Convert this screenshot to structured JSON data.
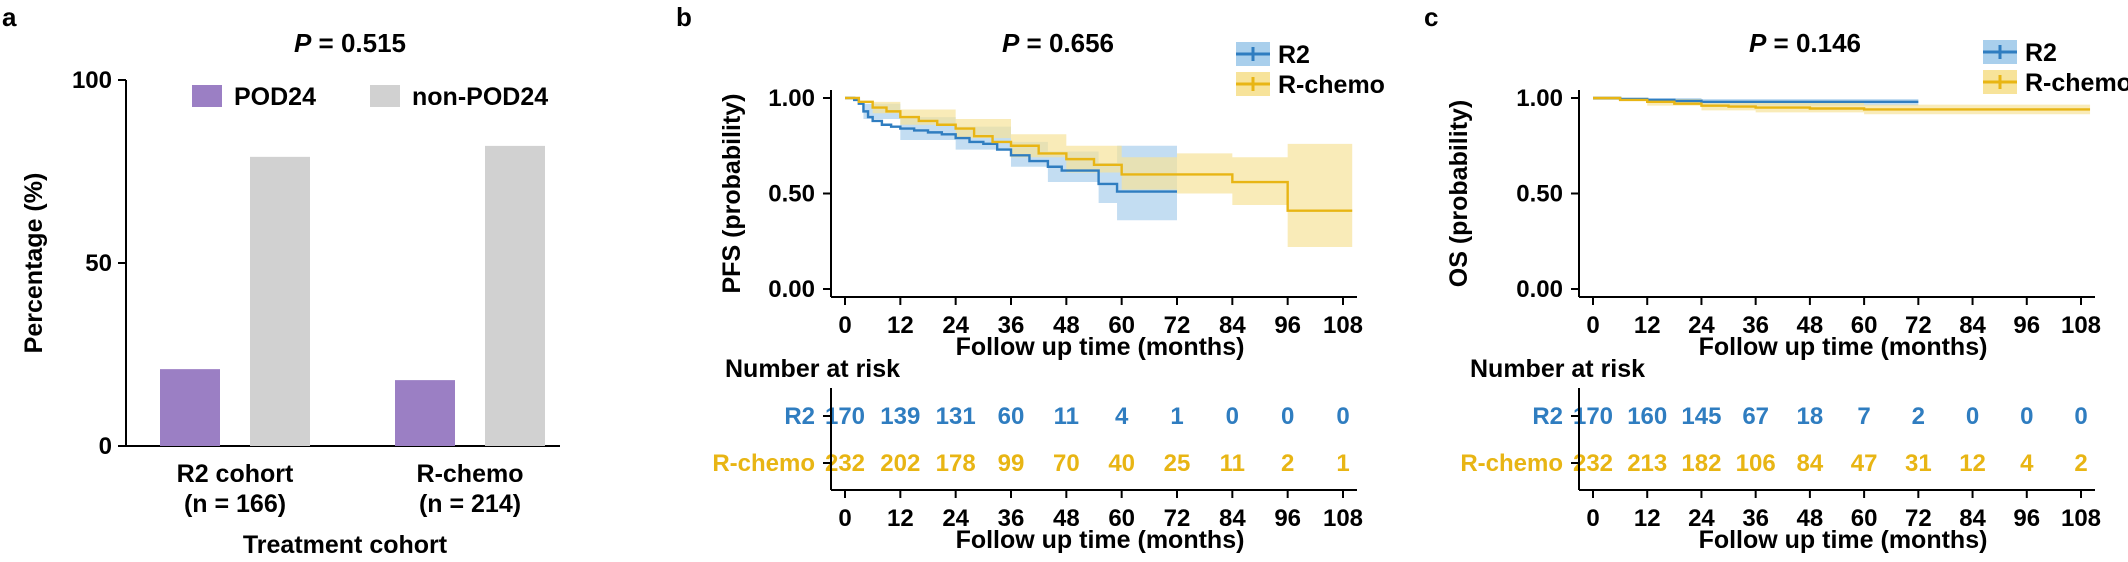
{
  "colors": {
    "pod24": "#9b7fc4",
    "non_pod24": "#d1d1d1",
    "r2": "#2f7dc0",
    "r2_band": "#a9cfec",
    "rchemo": "#e8b514",
    "rchemo_band": "#f7e39a",
    "axis": "#000000"
  },
  "chart_data": [
    {
      "panel": "a",
      "type": "bar",
      "title_italic": "P",
      "title_rest": " =  0.515",
      "ylabel": "Percentage (%)",
      "xlabel": "Treatment cohort",
      "ylim": [
        0,
        100
      ],
      "yticks": [
        "0",
        "50",
        "100"
      ],
      "categories": [
        {
          "line1": "R2 cohort",
          "line2": "(n = 166)"
        },
        {
          "line1": "R-chemo",
          "line2": "(n = 214)"
        }
      ],
      "series": [
        {
          "name": "POD24",
          "values": [
            21,
            18
          ],
          "color_key": "pod24"
        },
        {
          "name": "non-POD24",
          "values": [
            79,
            82
          ],
          "color_key": "non_pod24"
        }
      ],
      "legend_placement": "top"
    },
    {
      "panel": "b",
      "type": "line",
      "subtype": "kaplan-meier",
      "title_italic": "P",
      "title_rest": " = 0.656",
      "ylabel": "PFS (probability)",
      "xlabel": "Follow up time (months)",
      "xlim": [
        0,
        108
      ],
      "ylim": [
        0,
        1
      ],
      "xticks": [
        "0",
        "12",
        "24",
        "36",
        "48",
        "60",
        "72",
        "84",
        "96",
        "108"
      ],
      "yticks": [
        "0.00",
        "0.50",
        "1.00"
      ],
      "legend_placement": "top-right",
      "series": [
        {
          "name": "R2",
          "color_key": "r2",
          "band_key": "r2_band",
          "steps": [
            [
              0,
              1.0
            ],
            [
              2,
              0.99
            ],
            [
              3,
              0.97
            ],
            [
              4,
              0.93
            ],
            [
              5,
              0.9
            ],
            [
              6,
              0.88
            ],
            [
              8,
              0.86
            ],
            [
              10,
              0.85
            ],
            [
              12,
              0.84
            ],
            [
              15,
              0.83
            ],
            [
              18,
              0.82
            ],
            [
              21,
              0.81
            ],
            [
              24,
              0.79
            ],
            [
              27,
              0.77
            ],
            [
              30,
              0.76
            ],
            [
              33,
              0.73
            ],
            [
              36,
              0.7
            ],
            [
              40,
              0.67
            ],
            [
              44,
              0.64
            ],
            [
              47,
              0.62
            ],
            [
              55,
              0.55
            ],
            [
              59,
              0.51
            ],
            [
              72,
              0.51
            ]
          ],
          "lower": [
            [
              0,
              1.0
            ],
            [
              4,
              0.89
            ],
            [
              12,
              0.78
            ],
            [
              24,
              0.73
            ],
            [
              36,
              0.64
            ],
            [
              44,
              0.56
            ],
            [
              55,
              0.45
            ],
            [
              59,
              0.36
            ],
            [
              72,
              0.36
            ]
          ],
          "upper": [
            [
              0,
              1.0
            ],
            [
              4,
              0.97
            ],
            [
              12,
              0.9
            ],
            [
              24,
              0.85
            ],
            [
              36,
              0.77
            ],
            [
              44,
              0.72
            ],
            [
              55,
              0.66
            ],
            [
              59,
              0.75
            ],
            [
              72,
              0.75
            ]
          ]
        },
        {
          "name": "R-chemo",
          "color_key": "rchemo",
          "band_key": "rchemo_band",
          "steps": [
            [
              0,
              1.0
            ],
            [
              3,
              0.98
            ],
            [
              6,
              0.95
            ],
            [
              9,
              0.93
            ],
            [
              12,
              0.9
            ],
            [
              16,
              0.88
            ],
            [
              20,
              0.86
            ],
            [
              24,
              0.84
            ],
            [
              28,
              0.8
            ],
            [
              32,
              0.77
            ],
            [
              36,
              0.75
            ],
            [
              42,
              0.71
            ],
            [
              48,
              0.68
            ],
            [
              54,
              0.65
            ],
            [
              60,
              0.6
            ],
            [
              72,
              0.6
            ],
            [
              84,
              0.56
            ],
            [
              96,
              0.41
            ],
            [
              110,
              0.41
            ]
          ],
          "lower": [
            [
              0,
              1.0
            ],
            [
              6,
              0.92
            ],
            [
              12,
              0.86
            ],
            [
              24,
              0.79
            ],
            [
              36,
              0.69
            ],
            [
              48,
              0.61
            ],
            [
              60,
              0.52
            ],
            [
              72,
              0.5
            ],
            [
              84,
              0.44
            ],
            [
              96,
              0.22
            ],
            [
              110,
              0.22
            ]
          ],
          "upper": [
            [
              0,
              1.0
            ],
            [
              6,
              0.98
            ],
            [
              12,
              0.94
            ],
            [
              24,
              0.89
            ],
            [
              36,
              0.81
            ],
            [
              48,
              0.75
            ],
            [
              60,
              0.69
            ],
            [
              72,
              0.71
            ],
            [
              84,
              0.69
            ],
            [
              96,
              0.76
            ],
            [
              110,
              0.76
            ]
          ]
        }
      ],
      "risk_table": {
        "header": "Number at risk",
        "times": [
          "0",
          "12",
          "24",
          "36",
          "48",
          "60",
          "72",
          "84",
          "96",
          "108"
        ],
        "rows": [
          {
            "label": "R2",
            "color_key": "r2",
            "values": [
              "170",
              "139",
              "131",
              "60",
              "11",
              "4",
              "1",
              "0",
              "0",
              "0"
            ]
          },
          {
            "label": "R-chemo",
            "color_key": "rchemo",
            "values": [
              "232",
              "202",
              "178",
              "99",
              "70",
              "40",
              "25",
              "11",
              "2",
              "1"
            ]
          }
        ],
        "xlabel": "Follow up time (months)"
      }
    },
    {
      "panel": "c",
      "type": "line",
      "subtype": "kaplan-meier",
      "title_italic": "P",
      "title_rest": " = 0.146",
      "ylabel": "OS (probability)",
      "xlabel": "Follow up time (months)",
      "xlim": [
        0,
        108
      ],
      "ylim": [
        0,
        1
      ],
      "xticks": [
        "0",
        "12",
        "24",
        "36",
        "48",
        "60",
        "72",
        "84",
        "96",
        "108"
      ],
      "yticks": [
        "0.00",
        "0.50",
        "1.00"
      ],
      "legend_placement": "top-right",
      "series": [
        {
          "name": "R2",
          "color_key": "r2",
          "band_key": "r2_band",
          "steps": [
            [
              0,
              1.0
            ],
            [
              6,
              0.995
            ],
            [
              12,
              0.99
            ],
            [
              18,
              0.985
            ],
            [
              24,
              0.98
            ],
            [
              72,
              0.98
            ]
          ],
          "lower": [
            [
              0,
              0.99
            ],
            [
              12,
              0.975
            ],
            [
              24,
              0.96
            ],
            [
              72,
              0.955
            ]
          ],
          "upper": [
            [
              0,
              1.0
            ],
            [
              12,
              1.0
            ],
            [
              24,
              0.995
            ],
            [
              72,
              0.995
            ]
          ]
        },
        {
          "name": "R-chemo",
          "color_key": "rchemo",
          "band_key": "rchemo_band",
          "steps": [
            [
              0,
              1.0
            ],
            [
              6,
              0.99
            ],
            [
              12,
              0.98
            ],
            [
              18,
              0.97
            ],
            [
              24,
              0.96
            ],
            [
              30,
              0.955
            ],
            [
              36,
              0.95
            ],
            [
              48,
              0.945
            ],
            [
              60,
              0.94
            ],
            [
              110,
              0.94
            ]
          ],
          "lower": [
            [
              0,
              0.99
            ],
            [
              12,
              0.96
            ],
            [
              24,
              0.935
            ],
            [
              36,
              0.925
            ],
            [
              60,
              0.915
            ],
            [
              110,
              0.91
            ]
          ],
          "upper": [
            [
              0,
              1.0
            ],
            [
              12,
              0.995
            ],
            [
              24,
              0.98
            ],
            [
              36,
              0.975
            ],
            [
              60,
              0.965
            ],
            [
              110,
              0.965
            ]
          ]
        }
      ],
      "risk_table": {
        "header": "Number at risk",
        "times": [
          "0",
          "12",
          "24",
          "36",
          "48",
          "60",
          "72",
          "84",
          "96",
          "108"
        ],
        "rows": [
          {
            "label": "R2",
            "color_key": "r2",
            "values": [
              "170",
              "160",
              "145",
              "67",
              "18",
              "7",
              "2",
              "0",
              "0",
              "0"
            ]
          },
          {
            "label": "R-chemo",
            "color_key": "rchemo",
            "values": [
              "232",
              "213",
              "182",
              "106",
              "84",
              "47",
              "31",
              "12",
              "4",
              "2"
            ]
          }
        ],
        "xlabel": "Follow up time (months)"
      }
    }
  ]
}
